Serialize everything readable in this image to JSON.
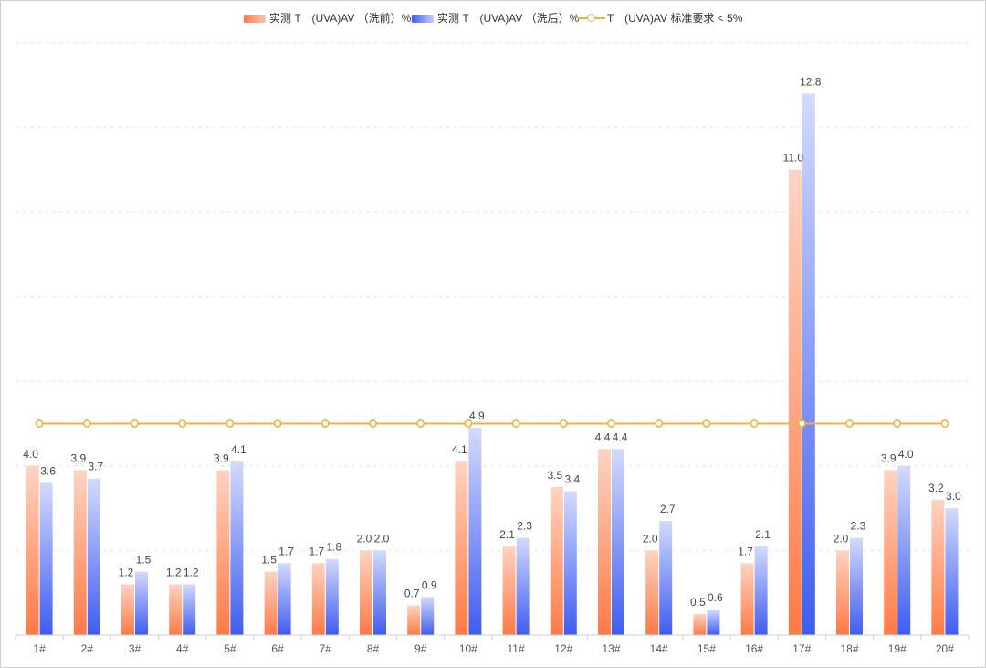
{
  "chart_data": {
    "type": "bar",
    "categories": [
      "1#",
      "2#",
      "3#",
      "4#",
      "5#",
      "6#",
      "7#",
      "8#",
      "9#",
      "10#",
      "11#",
      "12#",
      "13#",
      "14#",
      "15#",
      "16#",
      "17#",
      "18#",
      "19#",
      "20#"
    ],
    "series": [
      {
        "name": "实测 T　(UVA)AV （洗前）%",
        "type": "bar",
        "values": [
          4.0,
          3.9,
          1.2,
          1.2,
          3.9,
          1.5,
          1.7,
          2.0,
          0.7,
          4.1,
          2.1,
          3.5,
          4.4,
          2.0,
          0.5,
          1.7,
          11.0,
          2.0,
          3.9,
          3.2
        ]
      },
      {
        "name": "实测 T　(UVA)AV （洗后）%",
        "type": "bar",
        "values": [
          3.6,
          3.7,
          1.5,
          1.2,
          4.1,
          1.7,
          1.8,
          2.0,
          0.9,
          4.9,
          2.3,
          3.4,
          4.4,
          2.7,
          0.6,
          2.1,
          12.8,
          2.3,
          4.0,
          3.0
        ]
      },
      {
        "name": "T　(UVA)AV 标准要求 < 5%",
        "type": "line",
        "values": [
          5,
          5,
          5,
          5,
          5,
          5,
          5,
          5,
          5,
          5,
          5,
          5,
          5,
          5,
          5,
          5,
          5,
          5,
          5,
          5
        ]
      }
    ],
    "ylim": [
      0,
      14
    ],
    "grid": true,
    "legend_position": "top-center",
    "colors": {
      "before_dark": "#ff7a45",
      "before_light": "#ffd3c2",
      "after_dark": "#3f5cf0",
      "after_light": "#d3dafc",
      "line": "#f2b33d"
    }
  },
  "legend": {
    "before_label": "实测 T　(UVA)AV （洗前）%",
    "after_label": "实测 T　(UVA)AV （洗后）%",
    "standard_label": "T　(UVA)AV 标准要求 < 5%"
  }
}
